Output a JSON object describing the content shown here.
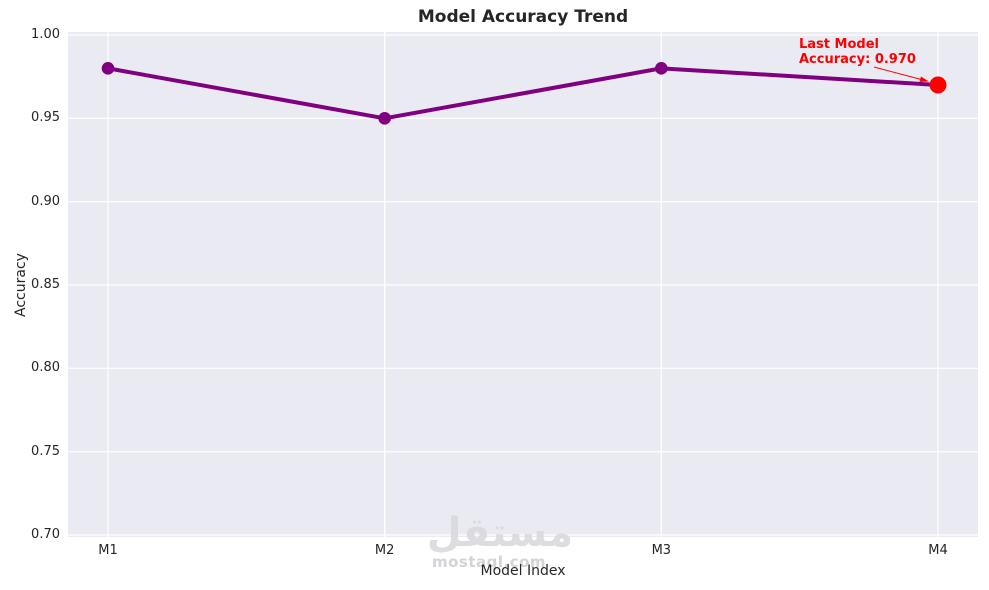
{
  "title": "Model Accuracy Trend",
  "axes": {
    "xlabel": "Model Index",
    "ylabel": "Accuracy"
  },
  "annotation": {
    "line1": "Last Model",
    "line2": "Accuracy: 0.970"
  },
  "watermark": {
    "arabic": "مستقل",
    "latin": "mostaql.com"
  },
  "colors": {
    "line": "#800080",
    "marker": "#800080",
    "last_marker": "#ff0000",
    "annotation_text": "#ff0000",
    "arrow": "#ff0000",
    "plot_background": "#eaeaf2",
    "gridline": "#ffffff",
    "text": "#262626",
    "watermark": "#d9d9de"
  },
  "chart_data": {
    "type": "line",
    "categories": [
      "M1",
      "M2",
      "M3",
      "M4"
    ],
    "series": [
      {
        "name": "Accuracy",
        "values": [
          0.98,
          0.95,
          0.98,
          0.97
        ]
      }
    ],
    "title": "Model Accuracy Trend",
    "xlabel": "Model Index",
    "ylabel": "Accuracy",
    "ylim": [
      0.7,
      1.0
    ],
    "ytick_values": [
      1.0,
      0.95,
      0.9,
      0.85,
      0.8,
      0.75,
      0.7
    ],
    "ytick_labels": [
      "1.00",
      "0.95",
      "0.90",
      "0.85",
      "0.80",
      "0.75",
      "0.70"
    ],
    "grid": true,
    "legend": false,
    "annotation": {
      "text": "Last Model\nAccuracy: 0.970",
      "target_category": "M4",
      "target_value": 0.97
    },
    "last_point_highlight": true
  }
}
